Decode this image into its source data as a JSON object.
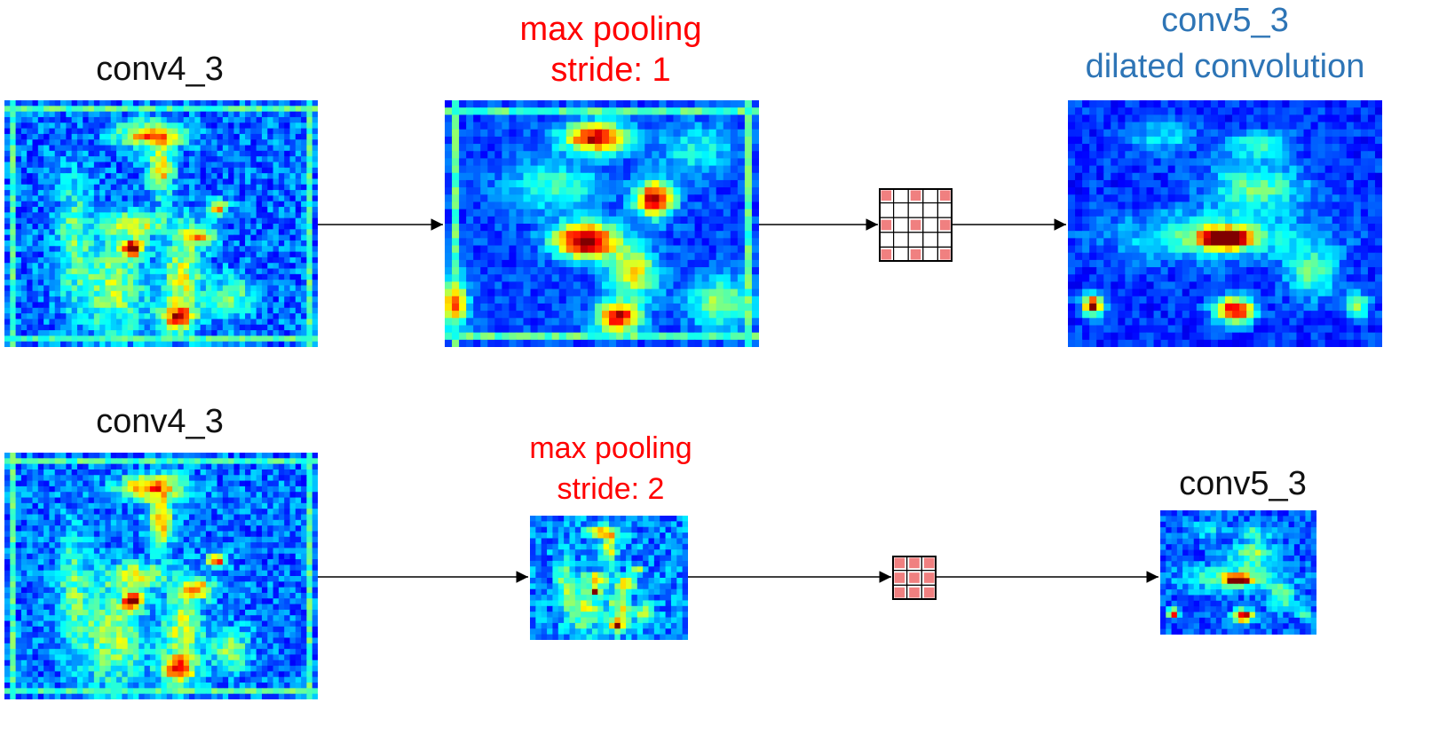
{
  "colors": {
    "pool_label": "#ff0000",
    "dilated_label": "#2e75b6",
    "kernel_fill": "#f08080",
    "heatmap_low": "#0a1fd6",
    "heatmap_high": "#ff1a00"
  },
  "top": {
    "input_label": "conv4_3",
    "pool_label_line1": "max pooling",
    "pool_label_line2": "stride: 1",
    "output_label_line1": "conv5_3",
    "output_label_line2": "dilated convolution",
    "kernel": {
      "grid_size": 5,
      "type": "dilated 3x3 kernel"
    }
  },
  "bottom": {
    "input_label": "conv4_3",
    "pool_label_line1": "max pooling",
    "pool_label_line2": "stride: 2",
    "output_label": "conv5_3",
    "kernel": {
      "grid_size": 3,
      "type": "dense 3x3 kernel"
    }
  }
}
